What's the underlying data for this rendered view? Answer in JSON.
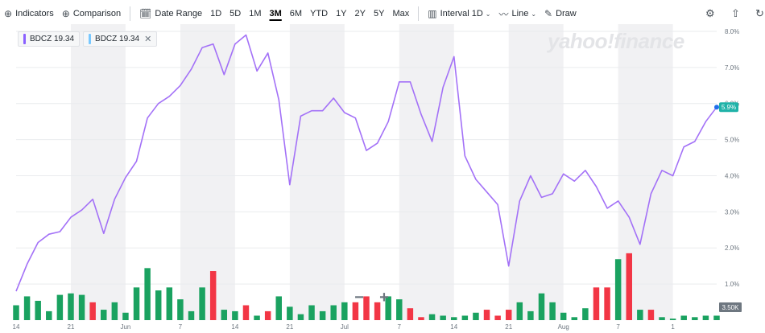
{
  "toolbar": {
    "indicators": "Indicators",
    "comparison": "Comparison",
    "date_range": "Date Range",
    "ranges": [
      "1D",
      "5D",
      "1M",
      "3M",
      "6M",
      "YTD",
      "1Y",
      "2Y",
      "5Y",
      "Max"
    ],
    "active_range": "3M",
    "interval_label": "Interval",
    "interval_value": "1D",
    "chart_type": "Line",
    "draw": "Draw"
  },
  "legend": [
    {
      "label": "BDCZ 19.34",
      "color": "#8a60ff",
      "removable": false
    },
    {
      "label": "BDCZ 19.34",
      "color": "#78c8ff",
      "removable": true
    }
  ],
  "watermark": "yahoo!finance",
  "colors": {
    "line": "#a371f7",
    "last_price_badge": "#1fb2a8",
    "volume_up": "#1aa260",
    "volume_down": "#f23645",
    "grid": "#e9ebee",
    "band": "#f1f1f3"
  },
  "chart_data": {
    "type": "line",
    "y_axis_format": "percent",
    "ylim": [
      0,
      8.2
    ],
    "y_ticks": [
      "8.0%",
      "7.0%",
      "6.0%",
      "5.0%",
      "4.0%",
      "3.0%",
      "2.0%",
      "1.0%"
    ],
    "x_ticks": [
      "14",
      "21",
      "Jun",
      "7",
      "14",
      "21",
      "Jul",
      "7",
      "14",
      "21",
      "Aug",
      "7",
      "1"
    ],
    "last_value_label": "5.9%",
    "volume_axis_label": "3.50K",
    "series": [
      {
        "values": [
          0.8,
          1.55,
          2.15,
          2.38,
          2.45,
          2.85,
          3.05,
          3.35,
          2.4,
          3.35,
          3.95,
          4.4,
          5.6,
          6.0,
          6.2,
          6.5,
          6.95,
          7.55,
          7.65,
          6.8,
          7.65,
          7.9,
          6.9,
          7.4,
          6.1,
          3.75,
          5.65,
          5.8,
          5.8,
          6.15,
          5.75,
          5.6,
          4.7,
          4.9,
          5.5,
          6.6,
          6.6,
          5.7,
          4.95,
          6.45,
          7.3,
          4.55,
          3.9,
          3.55,
          3.2,
          1.5,
          3.3,
          4.0,
          3.4,
          3.5,
          4.05,
          3.85,
          4.15,
          3.7,
          3.1,
          3.3,
          2.85,
          2.1,
          3.5,
          4.15,
          4.0,
          4.8,
          4.95,
          5.5,
          5.9
        ]
      }
    ],
    "volume": {
      "values": [
        0.5,
        0.8,
        0.65,
        0.3,
        0.85,
        0.9,
        0.85,
        0.6,
        0.35,
        0.6,
        0.25,
        1.1,
        1.75,
        1.0,
        1.1,
        0.7,
        0.3,
        1.1,
        1.65,
        0.35,
        0.3,
        0.5,
        0.15,
        0.3,
        0.8,
        0.45,
        0.2,
        0.5,
        0.3,
        0.5,
        0.6,
        0.6,
        0.8,
        0.6,
        0.8,
        0.7,
        0.4,
        0.1,
        0.2,
        0.15,
        0.1,
        0.15,
        0.25,
        0.35,
        0.15,
        0.35,
        0.6,
        0.3,
        0.9,
        0.6,
        0.25,
        0.1,
        0.4,
        1.1,
        1.1,
        2.05,
        2.25,
        0.35,
        0.35,
        0.1,
        0.05,
        0.15,
        0.1,
        0.15,
        0.15
      ],
      "direction": [
        "up",
        "up",
        "up",
        "up",
        "up",
        "up",
        "up",
        "down",
        "up",
        "up",
        "up",
        "up",
        "up",
        "up",
        "up",
        "up",
        "up",
        "up",
        "down",
        "up",
        "up",
        "down",
        "up",
        "down",
        "up",
        "up",
        "up",
        "up",
        "up",
        "up",
        "up",
        "down",
        "down",
        "down",
        "up",
        "up",
        "down",
        "down",
        "up",
        "up",
        "up",
        "up",
        "up",
        "down",
        "down",
        "down",
        "up",
        "up",
        "up",
        "up",
        "up",
        "up",
        "up",
        "down",
        "down",
        "up",
        "down",
        "up",
        "down",
        "up",
        "up",
        "up",
        "up",
        "up",
        "up"
      ]
    }
  }
}
